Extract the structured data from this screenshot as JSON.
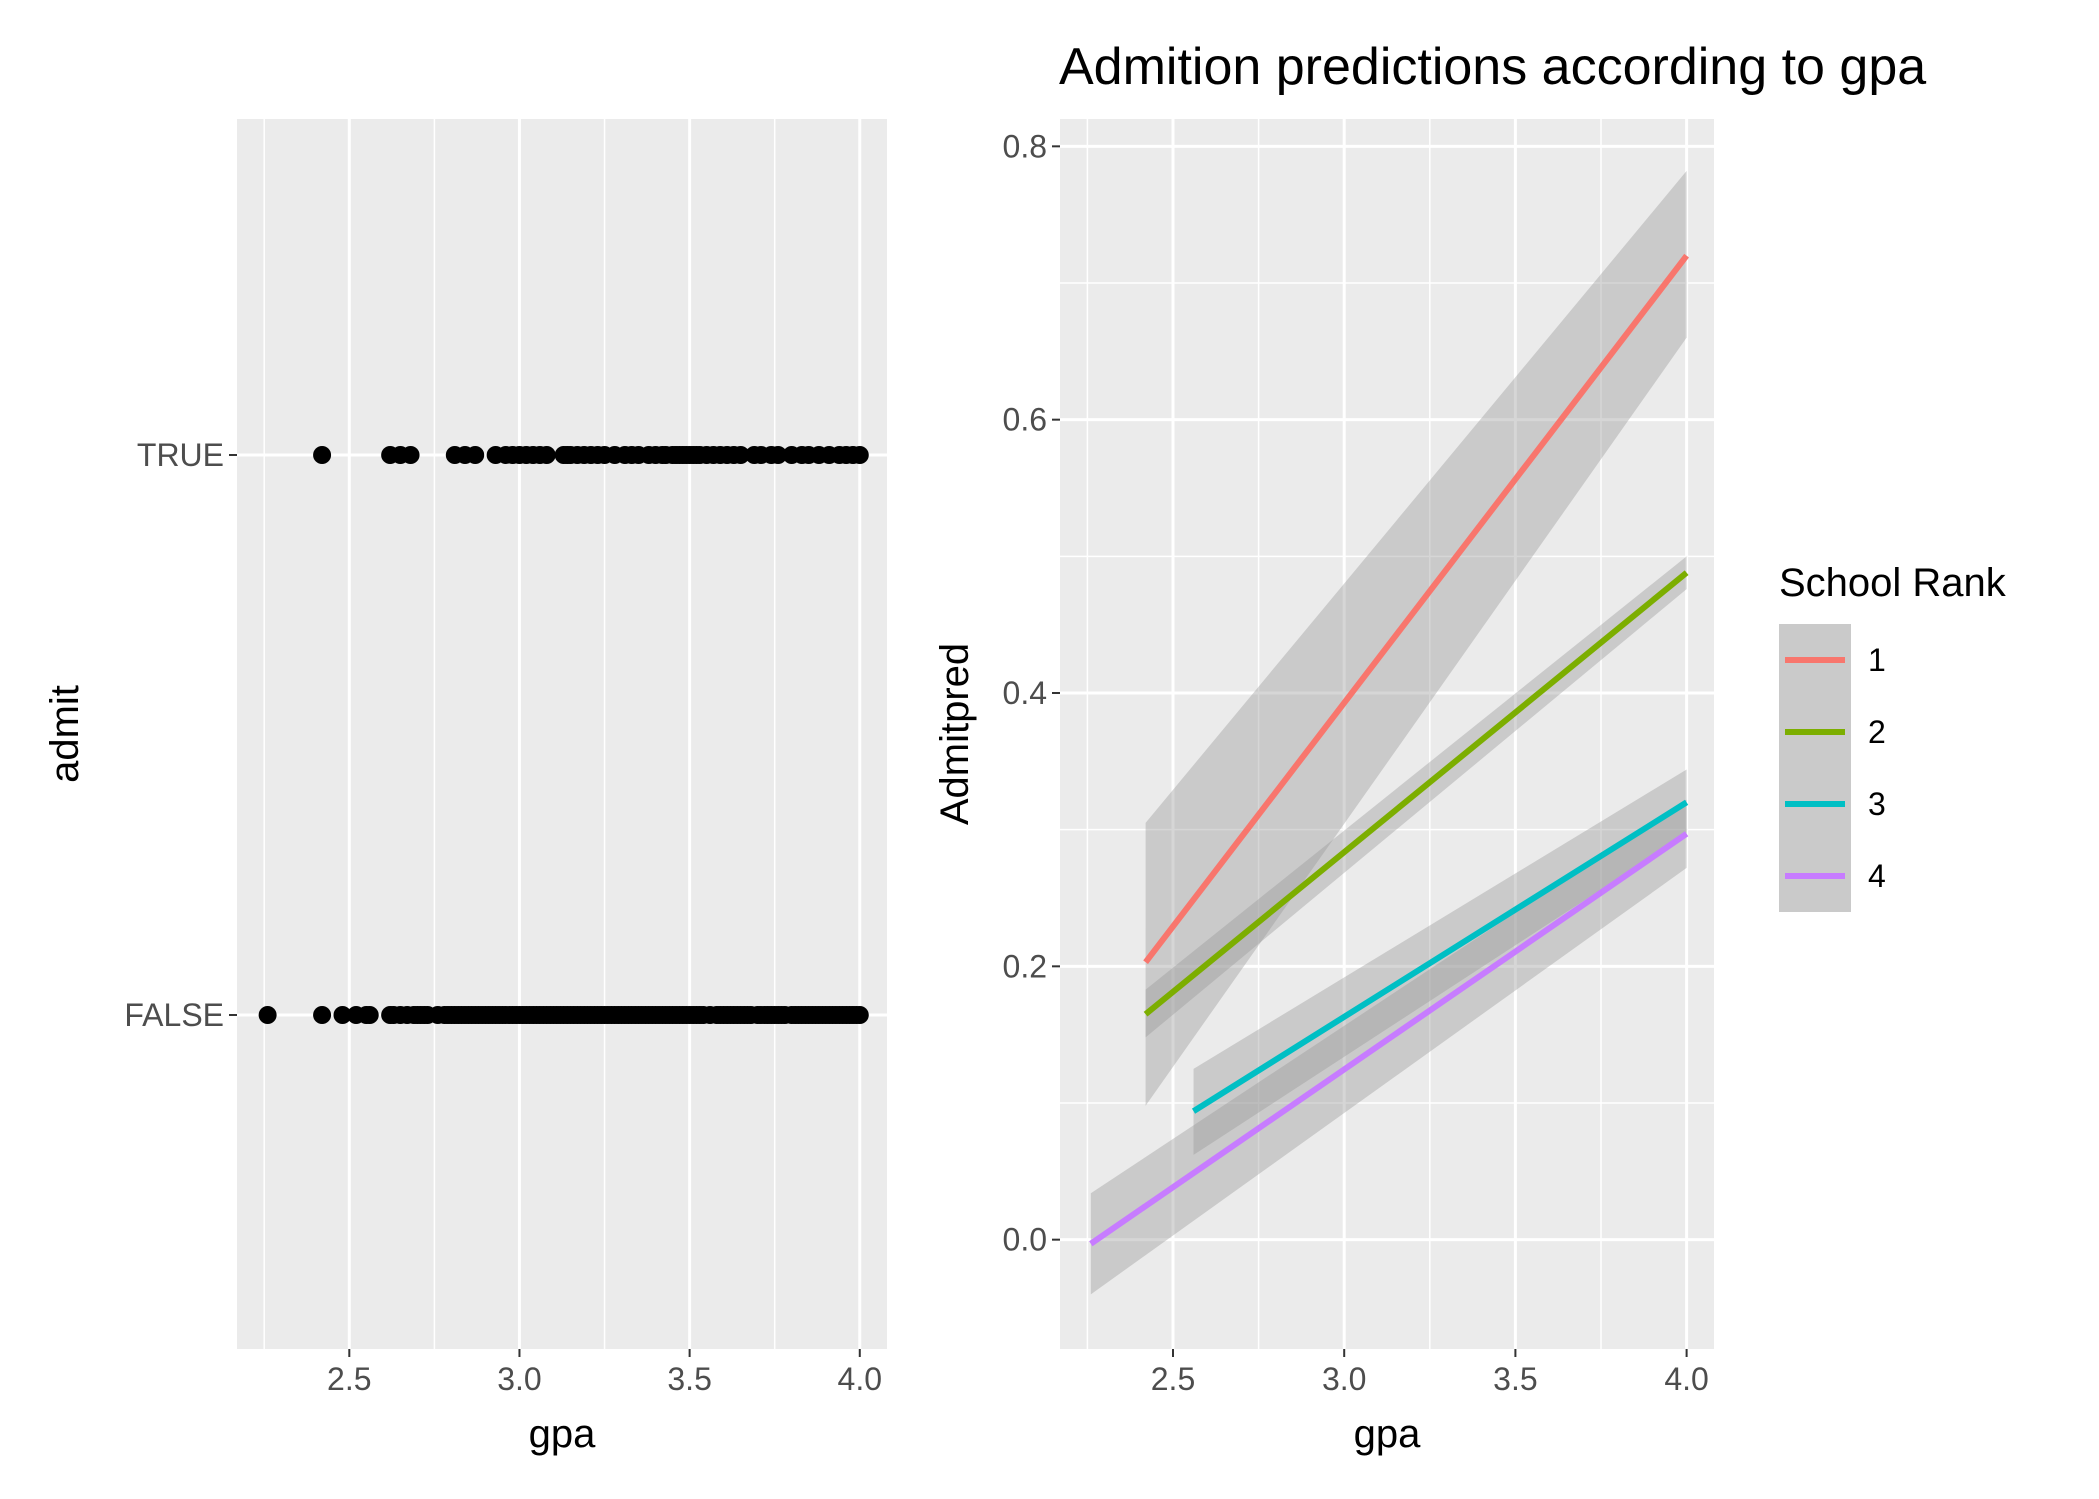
{
  "chart_data": [
    {
      "type": "scatter",
      "title": "",
      "xlabel": "gpa",
      "ylabel": "admit",
      "xlim": [
        2.17,
        4.08
      ],
      "xticks": [
        2.5,
        3.0,
        3.5,
        4.0
      ],
      "xtick_labels": [
        "2.5",
        "3.0",
        "3.5",
        "4.0"
      ],
      "categories": [
        "FALSE",
        "TRUE"
      ],
      "grid": true,
      "points": {
        "TRUE": [
          2.42,
          2.62,
          2.65,
          2.68,
          2.81,
          2.84,
          2.87,
          2.93,
          2.96,
          2.98,
          3.0,
          3.02,
          3.04,
          3.06,
          3.08,
          3.13,
          3.14,
          3.15,
          3.17,
          3.19,
          3.21,
          3.23,
          3.25,
          3.28,
          3.31,
          3.33,
          3.35,
          3.38,
          3.4,
          3.42,
          3.43,
          3.45,
          3.46,
          3.47,
          3.48,
          3.49,
          3.5,
          3.51,
          3.52,
          3.53,
          3.55,
          3.57,
          3.59,
          3.61,
          3.63,
          3.65,
          3.69,
          3.71,
          3.74,
          3.76,
          3.8,
          3.83,
          3.85,
          3.88,
          3.91,
          3.94,
          3.96,
          3.98,
          4.0
        ],
        "FALSE": [
          2.26,
          2.42,
          2.48,
          2.52,
          2.55,
          2.56,
          2.62,
          2.63,
          2.65,
          2.67,
          2.69,
          2.7,
          2.71,
          2.72,
          2.73,
          2.76,
          2.78,
          2.79,
          2.8,
          2.81,
          2.82,
          2.83,
          2.84,
          2.85,
          2.86,
          2.87,
          2.88,
          2.89,
          2.9,
          2.91,
          2.92,
          2.93,
          2.94,
          2.95,
          2.96,
          2.97,
          2.98,
          2.99,
          3.0,
          3.01,
          3.02,
          3.03,
          3.04,
          3.05,
          3.06,
          3.07,
          3.08,
          3.09,
          3.1,
          3.11,
          3.12,
          3.13,
          3.14,
          3.15,
          3.16,
          3.17,
          3.18,
          3.19,
          3.2,
          3.21,
          3.22,
          3.23,
          3.24,
          3.25,
          3.26,
          3.27,
          3.28,
          3.29,
          3.3,
          3.31,
          3.32,
          3.33,
          3.34,
          3.35,
          3.36,
          3.37,
          3.38,
          3.39,
          3.4,
          3.41,
          3.42,
          3.43,
          3.44,
          3.45,
          3.46,
          3.47,
          3.48,
          3.49,
          3.5,
          3.51,
          3.52,
          3.53,
          3.54,
          3.56,
          3.58,
          3.59,
          3.6,
          3.61,
          3.62,
          3.63,
          3.64,
          3.65,
          3.66,
          3.67,
          3.68,
          3.7,
          3.71,
          3.72,
          3.73,
          3.74,
          3.75,
          3.76,
          3.77,
          3.78,
          3.8,
          3.81,
          3.82,
          3.83,
          3.84,
          3.85,
          3.86,
          3.87,
          3.88,
          3.89,
          3.9,
          3.91,
          3.92,
          3.93,
          3.94,
          3.95,
          3.96,
          3.97,
          3.98,
          3.99,
          4.0
        ]
      },
      "point_color": "#000000"
    },
    {
      "type": "line",
      "title": "Admition predictions according to gpa",
      "xlabel": "gpa",
      "ylabel": "Admitpred",
      "xlim": [
        2.17,
        4.08
      ],
      "ylim": [
        -0.08,
        0.82
      ],
      "xticks": [
        2.5,
        3.0,
        3.5,
        4.0
      ],
      "xtick_labels": [
        "2.5",
        "3.0",
        "3.5",
        "4.0"
      ],
      "yticks": [
        0.0,
        0.2,
        0.4,
        0.6,
        0.8
      ],
      "ytick_labels": [
        "0.0",
        "0.2",
        "0.4",
        "0.6",
        "0.8"
      ],
      "grid": true,
      "legend_title": "School Rank",
      "legend_position": "right",
      "band_color": "#999999",
      "series": [
        {
          "name": "1",
          "color": "#F8766D",
          "x": [
            2.42,
            4.0
          ],
          "y": [
            0.203,
            0.72
          ],
          "lower": [
            0.098,
            0.66
          ],
          "upper": [
            0.305,
            0.782
          ]
        },
        {
          "name": "2",
          "color": "#7CAE00",
          "x": [
            2.42,
            4.0
          ],
          "y": [
            0.165,
            0.488
          ],
          "lower": [
            0.148,
            0.476
          ],
          "upper": [
            0.183,
            0.5
          ]
        },
        {
          "name": "3",
          "color": "#00BFC4",
          "x": [
            2.56,
            4.0
          ],
          "y": [
            0.094,
            0.32
          ],
          "lower": [
            0.062,
            0.297
          ],
          "upper": [
            0.125,
            0.344
          ]
        },
        {
          "name": "4",
          "color": "#C77CFF",
          "x": [
            2.26,
            4.0
          ],
          "y": [
            -0.003,
            0.297
          ],
          "lower": [
            -0.04,
            0.272
          ],
          "upper": [
            0.034,
            0.322
          ]
        }
      ]
    }
  ]
}
